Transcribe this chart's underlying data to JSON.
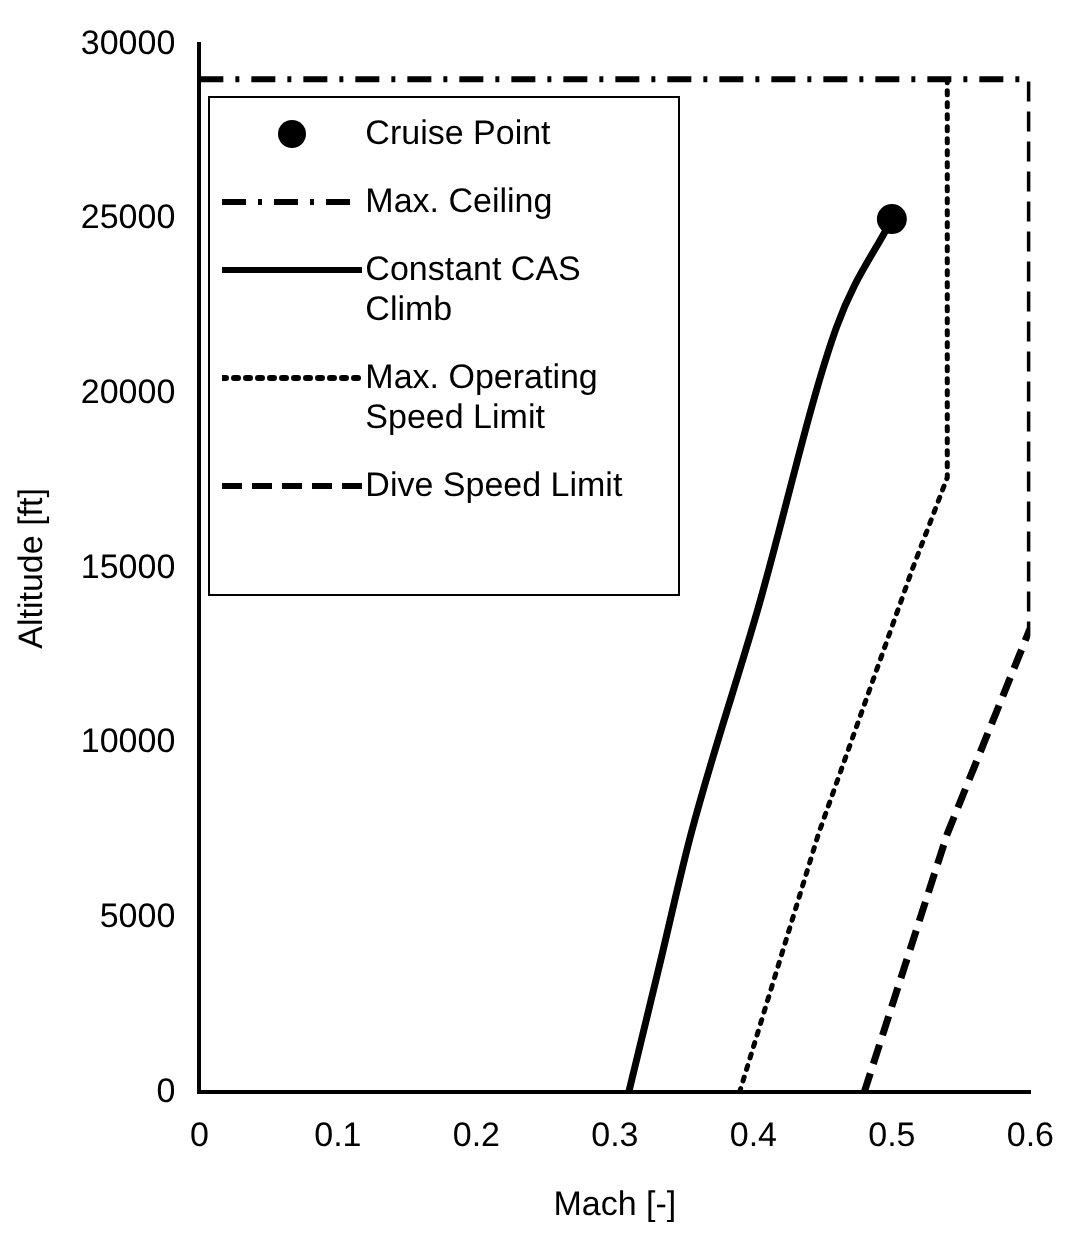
{
  "chart_data": {
    "type": "line",
    "xlabel": "Mach [-]",
    "ylabel": "Altitude [ft]",
    "xlim": [
      0,
      0.6
    ],
    "xticks": [
      0,
      0.1,
      0.2,
      0.3,
      0.4,
      0.5,
      0.6
    ],
    "ylim": [
      0,
      30000
    ],
    "yticks": [
      0,
      5000,
      10000,
      15000,
      20000,
      25000,
      30000
    ],
    "grid": false,
    "legend": "top left",
    "series": [
      {
        "name": "Cruise Point",
        "type": "scatter",
        "marker": "circle",
        "color": "#000000",
        "x": [
          0.5
        ],
        "values": [
          25000
        ]
      },
      {
        "name": "Max. Ceiling",
        "line_style": "dashdot",
        "color": "#000000",
        "x": [
          0,
          0.6
        ],
        "values": [
          29000,
          29000
        ]
      },
      {
        "name": "Constant CAS Climb",
        "line_style": "solid",
        "color": "#000000",
        "x": [
          0.31,
          0.332,
          0.355,
          0.403,
          0.46,
          0.5
        ],
        "values": [
          0,
          3600,
          7400,
          13800,
          21900,
          25000
        ]
      },
      {
        "name": "Max. Operating Speed Limit",
        "line_style": "dotted",
        "color": "#000000",
        "x": [
          0.39,
          0.447,
          0.515,
          0.54,
          0.54
        ],
        "values": [
          0,
          7400,
          15000,
          17600,
          29000
        ]
      },
      {
        "name": "Dive Speed Limit",
        "line_style": "dashed",
        "color": "#000000",
        "x": [
          0.48,
          0.54,
          0.6,
          0.6
        ],
        "values": [
          0,
          7400,
          13300,
          29000
        ]
      }
    ]
  }
}
